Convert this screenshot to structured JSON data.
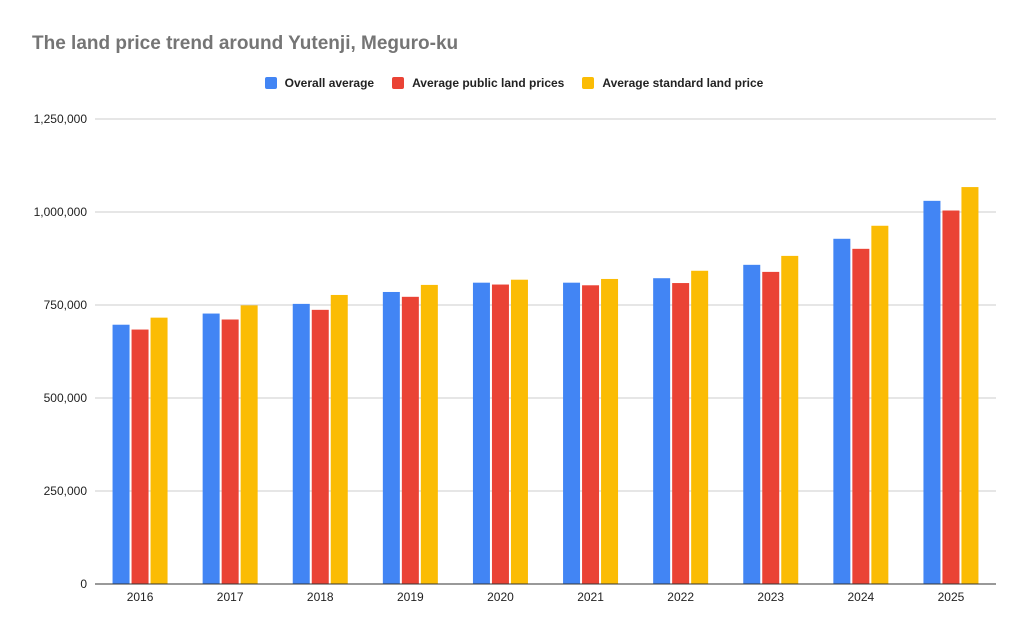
{
  "chart_data": {
    "type": "bar",
    "title": "The land price trend around Yutenji, Meguro-ku",
    "xlabel": "",
    "ylabel": "",
    "categories": [
      "2016",
      "2017",
      "2018",
      "2019",
      "2020",
      "2021",
      "2022",
      "2023",
      "2024",
      "2025"
    ],
    "series": [
      {
        "name": "Overall average",
        "color": "#4285f4",
        "values": [
          697000,
          727000,
          753000,
          785000,
          810000,
          810000,
          822000,
          858000,
          928000,
          1030000
        ]
      },
      {
        "name": "Average public land prices",
        "color": "#ea4335",
        "values": [
          684000,
          711000,
          737000,
          772000,
          805000,
          803000,
          809000,
          839000,
          901000,
          1004000
        ]
      },
      {
        "name": "Average standard land price",
        "color": "#fbbc04",
        "values": [
          716000,
          749000,
          777000,
          804000,
          818000,
          820000,
          842000,
          882000,
          963000,
          1067000
        ]
      }
    ],
    "ylim": [
      0,
      1250000
    ],
    "yticks": [
      "0",
      "250,000",
      "500,000",
      "750,000",
      "1,000,000",
      "1,250,000"
    ],
    "ytick_values": [
      0,
      250000,
      500000,
      750000,
      1000000,
      1250000
    ],
    "grid": true,
    "legend_position": "top"
  }
}
